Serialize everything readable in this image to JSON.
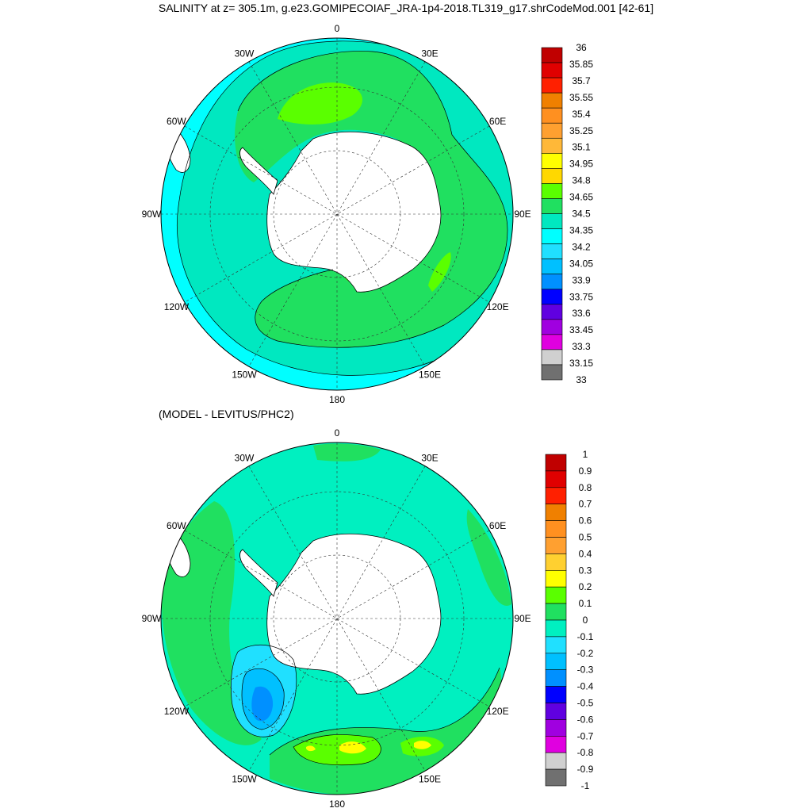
{
  "title": "SALINITY at z= 305.1m, g.e23.GOMIPECOIAF_JRA-1p4-2018.TL319_g17.shrCodeMod.001 [42-61]",
  "subtitle": "(MODEL - LEVITUS/PHC2)",
  "longitude_labels": [
    "0",
    "30E",
    "60E",
    "90E",
    "120E",
    "150E",
    "180",
    "150W",
    "120W",
    "90W",
    "60W",
    "30W"
  ],
  "colors": {
    "land": "#ffffff",
    "gridline": "#333333",
    "contour": "#000000"
  },
  "top_colorbar": {
    "labels": [
      "36",
      "35.85",
      "35.7",
      "35.55",
      "35.4",
      "35.25",
      "35.1",
      "34.95",
      "34.8",
      "34.65",
      "34.5",
      "34.35",
      "34.2",
      "34.05",
      "33.9",
      "33.75",
      "33.6",
      "33.45",
      "33.3",
      "33.15",
      "33"
    ],
    "colors": [
      "#c00000",
      "#e00000",
      "#ff2000",
      "#f08000",
      "#ff9020",
      "#ffa030",
      "#ffb838",
      "#ffff00",
      "#ffd800",
      "#5aff00",
      "#20e060",
      "#00e8c0",
      "#00ffff",
      "#20e0ff",
      "#00c0ff",
      "#0090ff",
      "#0000ff",
      "#6000e0",
      "#a000e0",
      "#e000e0",
      "#d0d0d0",
      "#707070"
    ]
  },
  "bottom_colorbar": {
    "labels": [
      "1",
      "0.9",
      "0.8",
      "0.7",
      "0.6",
      "0.5",
      "0.4",
      "0.3",
      "0.2",
      "0.1",
      "0",
      "-0.1",
      "-0.2",
      "-0.3",
      "-0.4",
      "-0.5",
      "-0.6",
      "-0.7",
      "-0.8",
      "-0.9",
      "-1"
    ],
    "colors": [
      "#c00000",
      "#e00000",
      "#ff2000",
      "#f08000",
      "#ff9020",
      "#ffa030",
      "#ffd030",
      "#ffff00",
      "#5aff00",
      "#20e060",
      "#00f0c0",
      "#20e0ff",
      "#00c0ff",
      "#0090ff",
      "#0000ff",
      "#6000e0",
      "#a000e0",
      "#e000e0",
      "#d0d0d0",
      "#707070"
    ]
  },
  "top_map": {
    "field_colors": {
      "outer": "#00ffff",
      "mid": "#00e8c0",
      "band": "#20e060",
      "high": "#5aff00",
      "peak": "#ffff00"
    }
  },
  "bottom_map": {
    "field_colors": {
      "base": "#00f0c0",
      "pos": "#20e060",
      "pos2": "#5aff00",
      "pos3": "#ffff00",
      "neg1": "#20e0ff",
      "neg2": "#00c0ff",
      "neg3": "#0090ff"
    }
  }
}
